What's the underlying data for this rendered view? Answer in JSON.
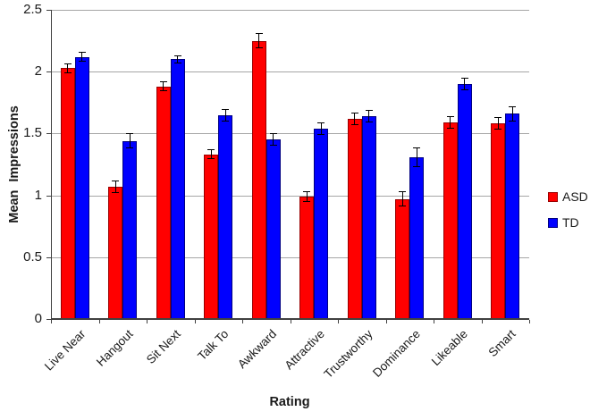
{
  "chart_data": {
    "type": "bar",
    "title": "",
    "xlabel": "Rating",
    "ylabel": "Mean Impressions",
    "ylim": [
      0,
      2.5
    ],
    "ytick_step": 0.5,
    "ytick_labels": [
      "0",
      "0.5",
      "1",
      "1.5",
      "2",
      "2.5"
    ],
    "grid": "horizontal",
    "legend_position": "right",
    "error_bars": true,
    "categories": [
      "Live Near",
      "Hangout",
      "Sit Next",
      "Talk To",
      "Awkward",
      "Attractive",
      "Trustworthy",
      "Dominance",
      "Likeable",
      "Smart"
    ],
    "series": [
      {
        "name": "ASD",
        "color": "#ff0000",
        "border_color": "#990000",
        "values": [
          2.03,
          1.07,
          1.88,
          1.33,
          2.25,
          0.99,
          1.62,
          0.97,
          1.59,
          1.58
        ],
        "errors": [
          0.04,
          0.05,
          0.04,
          0.04,
          0.06,
          0.04,
          0.05,
          0.06,
          0.05,
          0.05
        ]
      },
      {
        "name": "TD",
        "color": "#0000ff",
        "border_color": "#000080",
        "values": [
          2.12,
          1.44,
          2.1,
          1.65,
          1.45,
          1.54,
          1.64,
          1.31,
          1.9,
          1.66
        ],
        "errors": [
          0.04,
          0.06,
          0.03,
          0.05,
          0.05,
          0.05,
          0.05,
          0.08,
          0.05,
          0.06
        ]
      }
    ],
    "colors": {
      "gridline": "#a6a6a6",
      "axis": "#404040",
      "error_bar": "#000000",
      "text": "#1a1a1a",
      "background": "#ffffff"
    }
  }
}
